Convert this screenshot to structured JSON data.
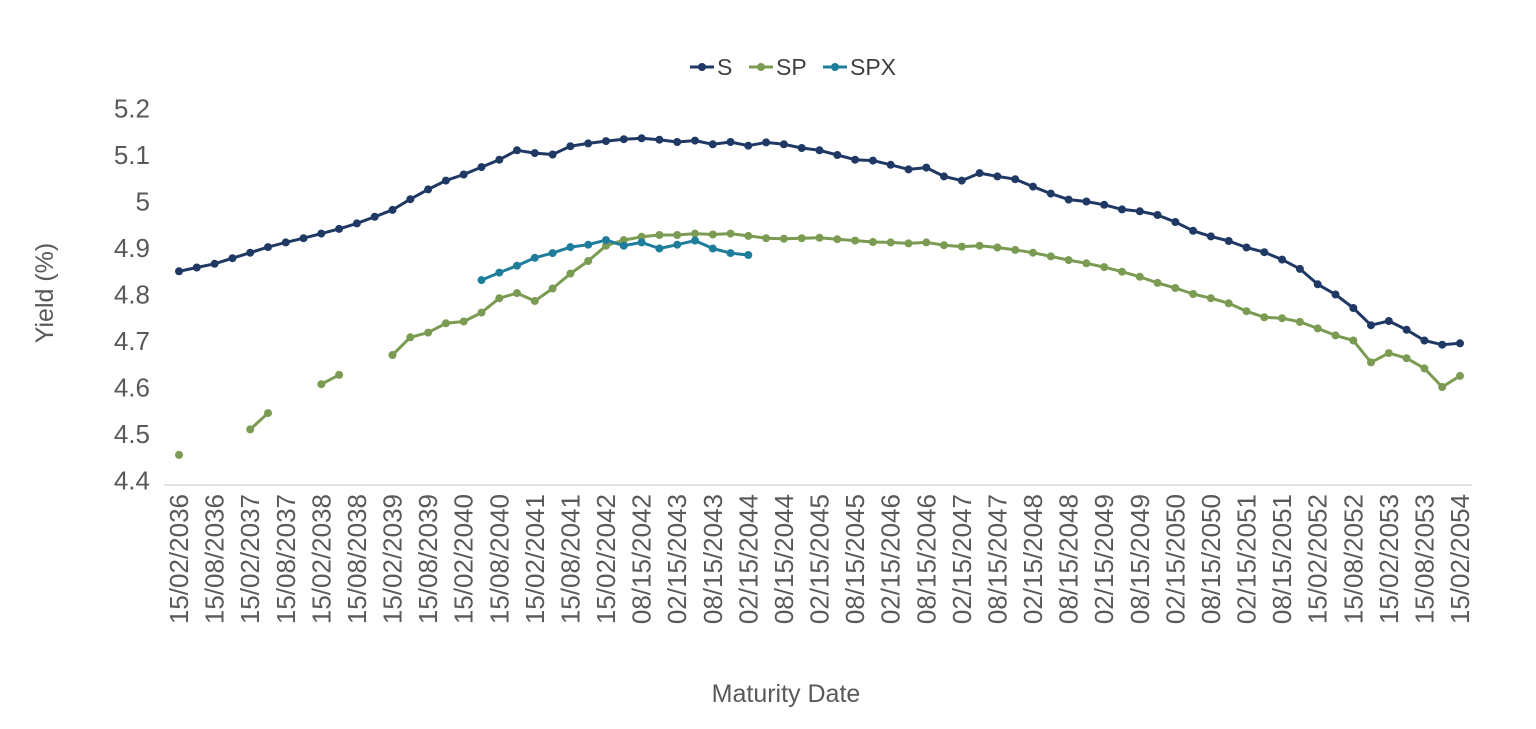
{
  "chart_data": {
    "type": "line",
    "title": "",
    "xlabel": "Maturity Date",
    "ylabel": "Yield (%)",
    "ylim": [
      4.4,
      5.2
    ],
    "ytick_step": 0.1,
    "grid": false,
    "legend_position": "top-center",
    "num_points": 73,
    "label_interval": 2,
    "tick_label_color": "#595959",
    "axis_line_color": "#D9D9D9",
    "legend_text_color": "#3F3F3F",
    "x_tick_labels": [
      "15/02/2036",
      "15/08/2036",
      "15/02/2037",
      "15/08/2037",
      "15/02/2038",
      "15/08/2038",
      "15/02/2039",
      "15/08/2039",
      "15/02/2040",
      "15/08/2040",
      "15/02/2041",
      "15/08/2041",
      "15/02/2042",
      "08/15/2042",
      "02/15/2043",
      "08/15/2043",
      "02/15/2044",
      "08/15/2044",
      "02/15/2045",
      "08/15/2045",
      "02/15/2046",
      "08/15/2046",
      "02/15/2047",
      "08/15/2047",
      "02/15/2048",
      "08/15/2048",
      "02/15/2049",
      "08/15/2049",
      "02/15/2050",
      "08/15/2050",
      "02/15/2051",
      "08/15/2051",
      "15/02/2052",
      "15/08/2052",
      "15/02/2053",
      "15/08/2053",
      "15/02/2054"
    ],
    "series": [
      {
        "name": "S",
        "color": "#1F3864",
        "values": [
          4.85,
          4.858,
          4.866,
          4.878,
          4.89,
          4.902,
          4.912,
          4.921,
          4.931,
          4.941,
          4.953,
          4.967,
          4.982,
          5.005,
          5.026,
          5.045,
          5.058,
          5.074,
          5.09,
          5.11,
          5.104,
          5.101,
          5.119,
          5.125,
          5.13,
          5.134,
          5.136,
          5.133,
          5.128,
          5.131,
          5.123,
          5.128,
          5.12,
          5.127,
          5.123,
          5.115,
          5.11,
          5.1,
          5.09,
          5.088,
          5.079,
          5.069,
          5.073,
          5.054,
          5.045,
          5.061,
          5.054,
          5.048,
          5.032,
          5.017,
          5.004,
          5.0,
          4.993,
          4.983,
          4.979,
          4.971,
          4.956,
          4.937,
          4.925,
          4.915,
          4.901,
          4.891,
          4.875,
          4.855,
          4.822,
          4.8,
          4.771,
          4.734,
          4.743,
          4.724,
          4.701,
          4.692,
          4.695
        ]
      },
      {
        "name": "SP",
        "color": "#7A9B51",
        "values": [
          4.455,
          null,
          null,
          null,
          4.51,
          4.545,
          null,
          null,
          4.607,
          4.627,
          null,
          null,
          4.67,
          4.708,
          4.718,
          4.738,
          4.742,
          4.761,
          4.792,
          4.803,
          4.786,
          4.813,
          4.845,
          4.872,
          4.905,
          4.917,
          4.924,
          4.928,
          4.928,
          4.931,
          4.929,
          4.931,
          4.926,
          4.921,
          4.92,
          4.921,
          4.922,
          4.919,
          4.916,
          4.913,
          4.912,
          4.91,
          4.912,
          4.906,
          4.903,
          4.905,
          4.901,
          4.896,
          4.89,
          4.882,
          4.874,
          4.867,
          4.859,
          4.849,
          4.838,
          4.825,
          4.814,
          4.801,
          4.792,
          4.781,
          4.764,
          4.751,
          4.749,
          4.741,
          4.727,
          4.712,
          4.701,
          4.654,
          4.674,
          4.663,
          4.641,
          4.601,
          4.625
        ]
      },
      {
        "name": "SPX",
        "color": "#1E7D9B",
        "values": [
          null,
          null,
          null,
          null,
          null,
          null,
          null,
          null,
          null,
          null,
          null,
          null,
          null,
          null,
          null,
          null,
          null,
          4.831,
          4.847,
          4.862,
          4.879,
          4.889,
          4.902,
          4.907,
          4.917,
          4.905,
          4.912,
          4.899,
          4.907,
          4.916,
          4.899,
          4.889,
          4.885,
          null,
          null,
          null,
          null,
          null,
          null,
          null,
          null,
          null,
          null,
          null,
          null,
          null,
          null,
          null,
          null,
          null,
          null,
          null,
          null,
          null,
          null,
          null,
          null,
          null,
          null,
          null,
          null,
          null,
          null,
          null,
          null,
          null,
          null,
          null,
          null,
          null,
          null,
          null,
          null
        ]
      }
    ]
  }
}
